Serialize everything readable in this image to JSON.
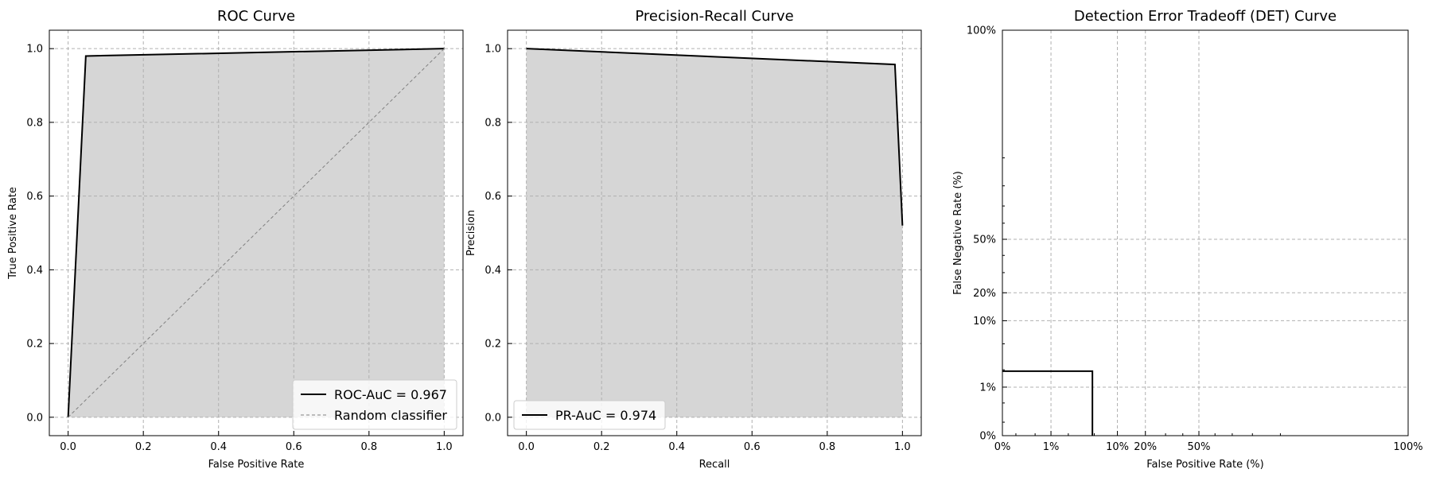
{
  "chart_data": [
    {
      "type": "line",
      "title": "ROC Curve",
      "xlabel": "False Positive Rate",
      "ylabel": "True Positive Rate",
      "xlim": [
        -0.05,
        1.05
      ],
      "ylim": [
        -0.05,
        1.05
      ],
      "xticks": [
        0.0,
        0.2,
        0.4,
        0.6,
        0.8,
        1.0
      ],
      "xtick_labels": [
        "0.0",
        "0.2",
        "0.4",
        "0.6",
        "0.8",
        "1.0"
      ],
      "yticks": [
        0.0,
        0.2,
        0.4,
        0.6,
        0.8,
        1.0
      ],
      "ytick_labels": [
        "0.0",
        "0.2",
        "0.4",
        "0.6",
        "0.8",
        "1.0"
      ],
      "grid": true,
      "legend_position": "lower-right",
      "series": [
        {
          "name": "ROC-AuC = 0.967",
          "style": "solid",
          "color": "#000000",
          "fill": "#d6d6d6",
          "x": [
            0.0,
            0.047,
            1.0
          ],
          "y": [
            0.0,
            0.98,
            1.0
          ]
        },
        {
          "name": "Random classifier",
          "style": "dashed",
          "color": "#808080",
          "x": [
            0.0,
            1.0
          ],
          "y": [
            0.0,
            1.0
          ]
        }
      ]
    },
    {
      "type": "line",
      "title": "Precision-Recall Curve",
      "xlabel": "Recall",
      "ylabel": "Precision",
      "xlim": [
        -0.05,
        1.05
      ],
      "ylim": [
        -0.05,
        1.05
      ],
      "xticks": [
        0.0,
        0.2,
        0.4,
        0.6,
        0.8,
        1.0
      ],
      "xtick_labels": [
        "0.0",
        "0.2",
        "0.4",
        "0.6",
        "0.8",
        "1.0"
      ],
      "yticks": [
        0.0,
        0.2,
        0.4,
        0.6,
        0.8,
        1.0
      ],
      "ytick_labels": [
        "0.0",
        "0.2",
        "0.4",
        "0.6",
        "0.8",
        "1.0"
      ],
      "grid": true,
      "legend_position": "lower-left",
      "series": [
        {
          "name": "PR-AuC = 0.974",
          "style": "solid",
          "color": "#000000",
          "fill": "#d6d6d6",
          "x": [
            0.0,
            0.98,
            1.0
          ],
          "y": [
            1.0,
            0.957,
            0.52
          ]
        }
      ]
    },
    {
      "type": "line",
      "title": "Detection Error Tradeoff (DET) Curve",
      "xlabel": "False Positive Rate (%)",
      "ylabel": "False Negative Rate (%)",
      "xscale": "probit",
      "yscale": "probit",
      "xticks": [
        0,
        1,
        10,
        20,
        50,
        100
      ],
      "xtick_labels": [
        "0%",
        "1%",
        "10%",
        "20%",
        "50%",
        "100%"
      ],
      "yticks": [
        0,
        1,
        10,
        20,
        50,
        100
      ],
      "ytick_labels": [
        "0%",
        "1%",
        "10%",
        "20%",
        "50%",
        "100%"
      ],
      "grid": true,
      "series": [
        {
          "style": "solid",
          "color": "#000000",
          "x": [
            0,
            4.7,
            4.7
          ],
          "y": [
            1.9,
            1.9,
            0
          ]
        }
      ]
    }
  ]
}
